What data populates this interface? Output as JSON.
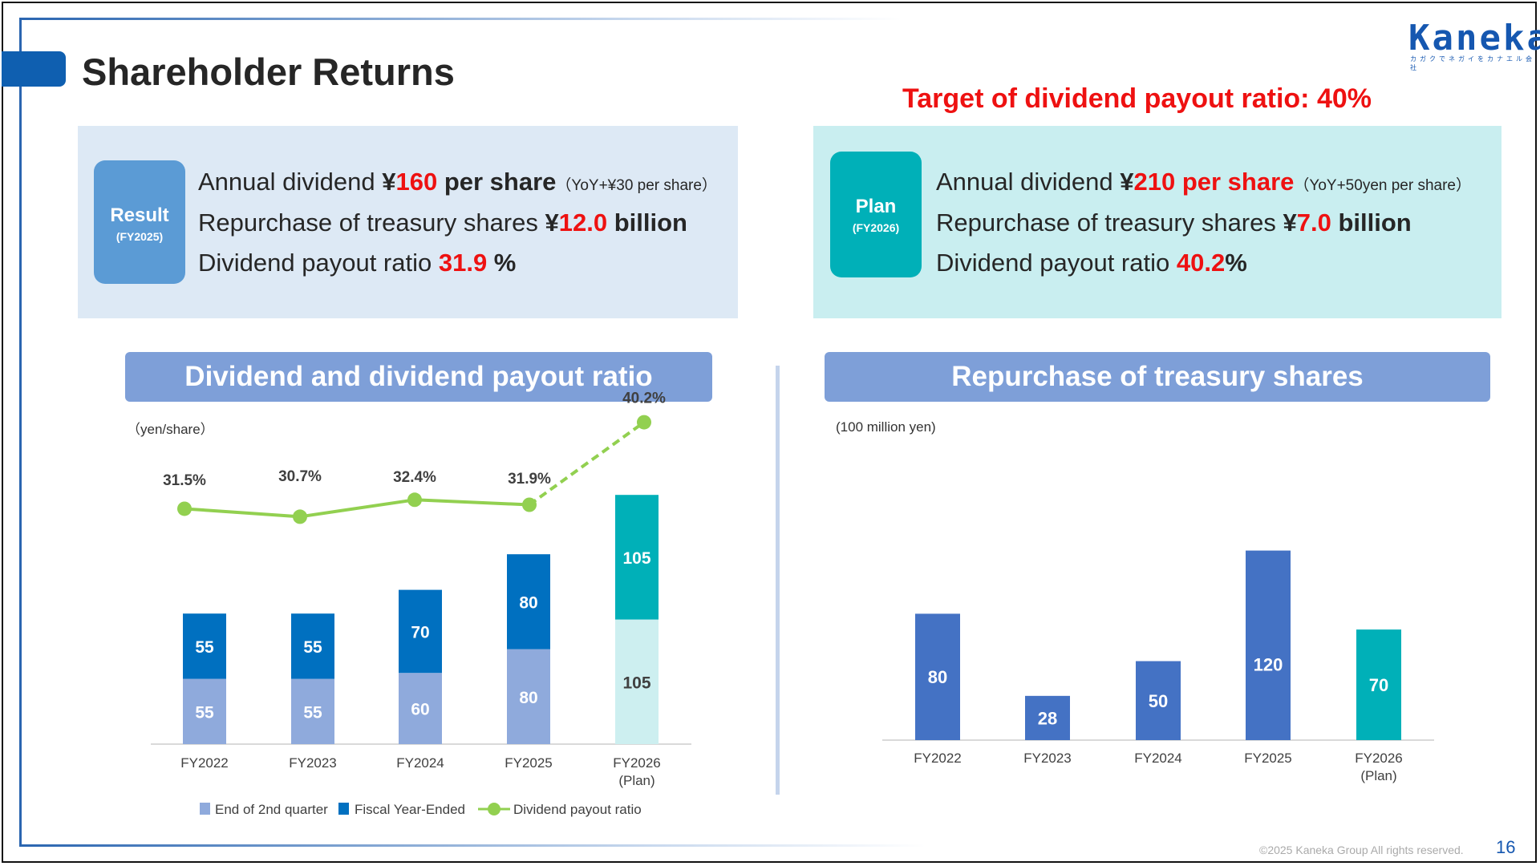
{
  "header": {
    "title": "Shareholder Returns",
    "logo": "Kaneka",
    "logo_sub": "カガクでネガイをカナエル会社",
    "target": "Target of dividend payout ratio: 40%"
  },
  "result": {
    "badge_title": "Result",
    "badge_sub": "(FY2025)",
    "dividend_label": "Annual dividend ",
    "dividend_prefix": "¥",
    "dividend_value": "160",
    "dividend_unit": " per share",
    "dividend_note": "（YoY+¥30 per share）",
    "repurchase_label": "Repurchase of treasury shares ",
    "repurchase_prefix": "¥",
    "repurchase_value": "12.0",
    "repurchase_unit": " billion",
    "payout_label": "Dividend payout ratio ",
    "payout_value": "31.9",
    "payout_unit": " %"
  },
  "plan": {
    "badge_title": "Plan",
    "badge_sub": "(FY2026)",
    "dividend_label": "Annual dividend ",
    "dividend_prefix": "¥",
    "dividend_value": "210",
    "dividend_unit": " per share",
    "dividend_note": "（YoY+50yen per share）",
    "repurchase_label": "Repurchase of treasury shares ",
    "repurchase_prefix": "¥",
    "repurchase_value": "7.0",
    "repurchase_unit": " billion",
    "payout_label": "Dividend payout ratio ",
    "payout_value": "40.2",
    "payout_unit": "%"
  },
  "colors": {
    "q2": "#8faadc",
    "fy": "#0070c0",
    "plan_fy": "#00b0b8",
    "plan_q2": "#cdeff0",
    "line": "#92d050",
    "repurchase": "#4472c4",
    "repurchase_plan": "#00b0b8"
  },
  "chart_data": [
    {
      "type": "bar",
      "title": "Dividend and dividend payout ratio",
      "unit": "（yen/share）",
      "categories": [
        "FY2022",
        "FY2023",
        "FY2024",
        "FY2025",
        "FY2026"
      ],
      "category_notes": [
        "",
        "",
        "",
        "",
        "(Plan)"
      ],
      "stacked": true,
      "series": [
        {
          "name": "End of 2nd quarter",
          "values": [
            55,
            55,
            60,
            80,
            105
          ]
        },
        {
          "name": "Fiscal Year-Ended",
          "values": [
            55,
            55,
            70,
            80,
            105
          ]
        }
      ],
      "line_series": {
        "name": "Dividend payout ratio",
        "values": [
          31.5,
          30.7,
          32.4,
          31.9,
          40.2
        ],
        "labels": [
          "31.5%",
          "30.7%",
          "32.4%",
          "31.9%",
          "40.2%"
        ],
        "last_segment_dashed": true
      },
      "legend": [
        "End of 2nd quarter",
        "Fiscal Year-Ended",
        "Dividend payout ratio"
      ],
      "legend_position": "bottom"
    },
    {
      "type": "bar",
      "title": "Repurchase of treasury shares",
      "unit": "(100 million yen)",
      "categories": [
        "FY2022",
        "FY2023",
        "FY2024",
        "FY2025",
        "FY2026"
      ],
      "category_notes": [
        "",
        "",
        "",
        "",
        "(Plan)"
      ],
      "values": [
        80,
        28,
        50,
        120,
        70
      ]
    }
  ],
  "footer": {
    "copyright": "©2025 Kaneka Group All rights reserved.",
    "page": "16"
  }
}
